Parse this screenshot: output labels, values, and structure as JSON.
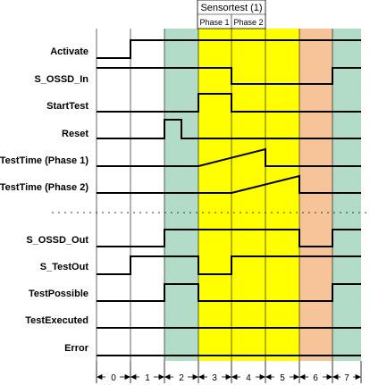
{
  "header": {
    "title": "Sensortest (1)",
    "phase1": "Phase 1",
    "phase2": "Phase 2"
  },
  "colors": {
    "green": "#b3dcc8",
    "yellow": "#ffff00",
    "orange": "#f7c49a",
    "signal": "#000000"
  },
  "signals": [
    {
      "label": "Activate"
    },
    {
      "label": "S_OSSD_In"
    },
    {
      "label": "StartTest"
    },
    {
      "label": "Reset"
    },
    {
      "label": "TestTime (Phase 1)"
    },
    {
      "label": "TestTime  (Phase 2)"
    },
    {
      "label": "S_OSSD_Out"
    },
    {
      "label": "S_TestOut"
    },
    {
      "label": "TestPossible"
    },
    {
      "label": "TestExecuted"
    },
    {
      "label": "Error"
    }
  ],
  "time_axis": {
    "ticks": [
      "0",
      "1",
      "2",
      "3",
      "4",
      "5",
      "6",
      "7"
    ]
  }
}
